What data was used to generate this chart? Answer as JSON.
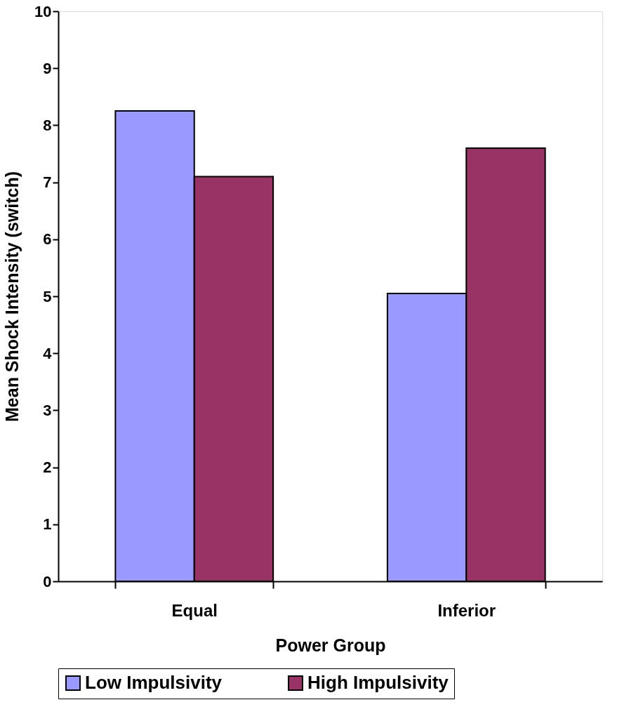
{
  "chart_data": {
    "type": "bar",
    "xlabel": "Power Group",
    "ylabel": "Mean Shock Intensity (switch)",
    "categories": [
      "Equal",
      "Inferior"
    ],
    "series": [
      {
        "name": "Low Impulsivity",
        "color": "#9999ff",
        "values": [
          8.25,
          5.05
        ]
      },
      {
        "name": "High Impulsivity",
        "color": "#993366",
        "values": [
          7.1,
          7.6
        ]
      }
    ],
    "ylim": [
      0,
      10
    ],
    "yticks": [
      0,
      1,
      2,
      3,
      4,
      5,
      6,
      7,
      8,
      9,
      10
    ],
    "grid": false,
    "legend": "bottom"
  }
}
